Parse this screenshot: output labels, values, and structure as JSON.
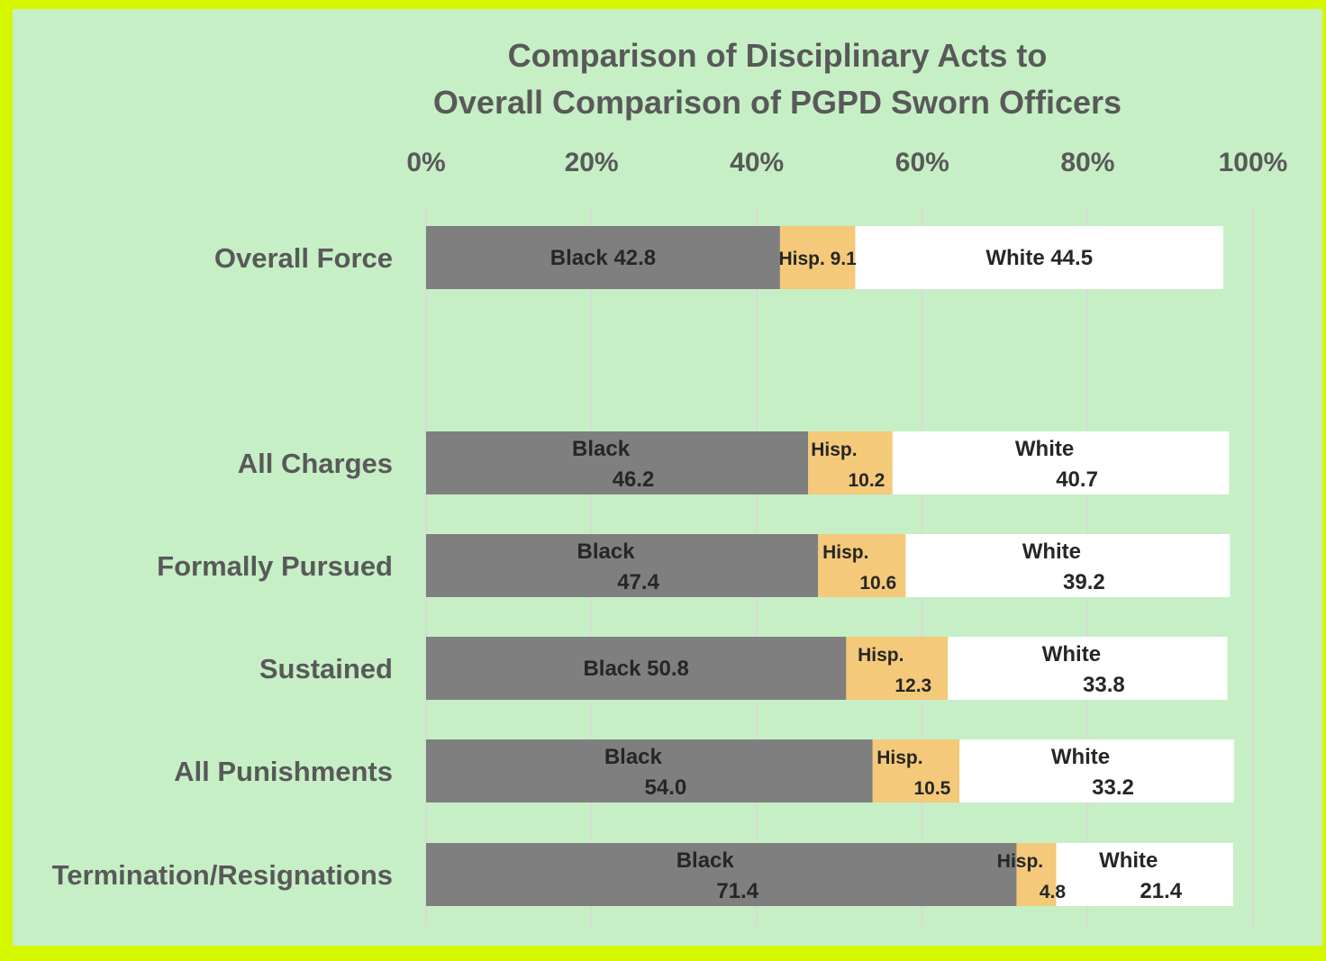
{
  "chart_data": {
    "type": "bar",
    "orientation": "horizontal",
    "stacked": true,
    "title_lines": [
      "Comparison of Disciplinary Acts to",
      "Overall Comparison of PGPD Sworn Officers"
    ],
    "xlabel": "",
    "ylabel": "",
    "xlim": [
      0,
      100
    ],
    "x_ticks": [
      "0%",
      "20%",
      "40%",
      "60%",
      "80%",
      "100%"
    ],
    "grid": true,
    "legend": "none",
    "categories": [
      "Overall Force",
      "All Charges",
      "Formally Pursued",
      "Sustained",
      "All Punishments",
      "Termination/Resignations"
    ],
    "series": [
      {
        "name": "Black",
        "color": "#7f7f7f",
        "values": [
          42.8,
          46.2,
          47.4,
          50.8,
          54.0,
          71.4
        ],
        "labels": [
          [
            "Black 42.8"
          ],
          [
            "Black",
            "46.2"
          ],
          [
            "Black",
            "47.4"
          ],
          [
            "Black 50.8"
          ],
          [
            "Black",
            "54.0"
          ],
          [
            "Black",
            "71.4"
          ]
        ]
      },
      {
        "name": "Hisp.",
        "color": "#f4c979",
        "values": [
          9.1,
          10.2,
          10.6,
          12.3,
          10.5,
          4.8
        ],
        "labels": [
          [
            "Hisp.  9.1"
          ],
          [
            "Hisp.",
            "10.2"
          ],
          [
            "Hisp.",
            "10.6"
          ],
          [
            "Hisp.",
            "12.3"
          ],
          [
            "Hisp.",
            "10.5"
          ],
          [
            "Hisp.",
            "4.8"
          ]
        ]
      },
      {
        "name": "White",
        "color": "#ffffff",
        "values": [
          44.5,
          40.7,
          39.2,
          33.8,
          33.2,
          21.4
        ],
        "labels": [
          [
            "White  44.5"
          ],
          [
            "White",
            "40.7"
          ],
          [
            "White",
            "39.2"
          ],
          [
            "White",
            "33.8"
          ],
          [
            "White",
            "33.2"
          ],
          [
            "White",
            "21.4"
          ]
        ]
      }
    ]
  },
  "colors": {
    "border": "#d4f700",
    "background": "#c6efc6",
    "text": "#595959",
    "grid": "#d9d9d9"
  }
}
